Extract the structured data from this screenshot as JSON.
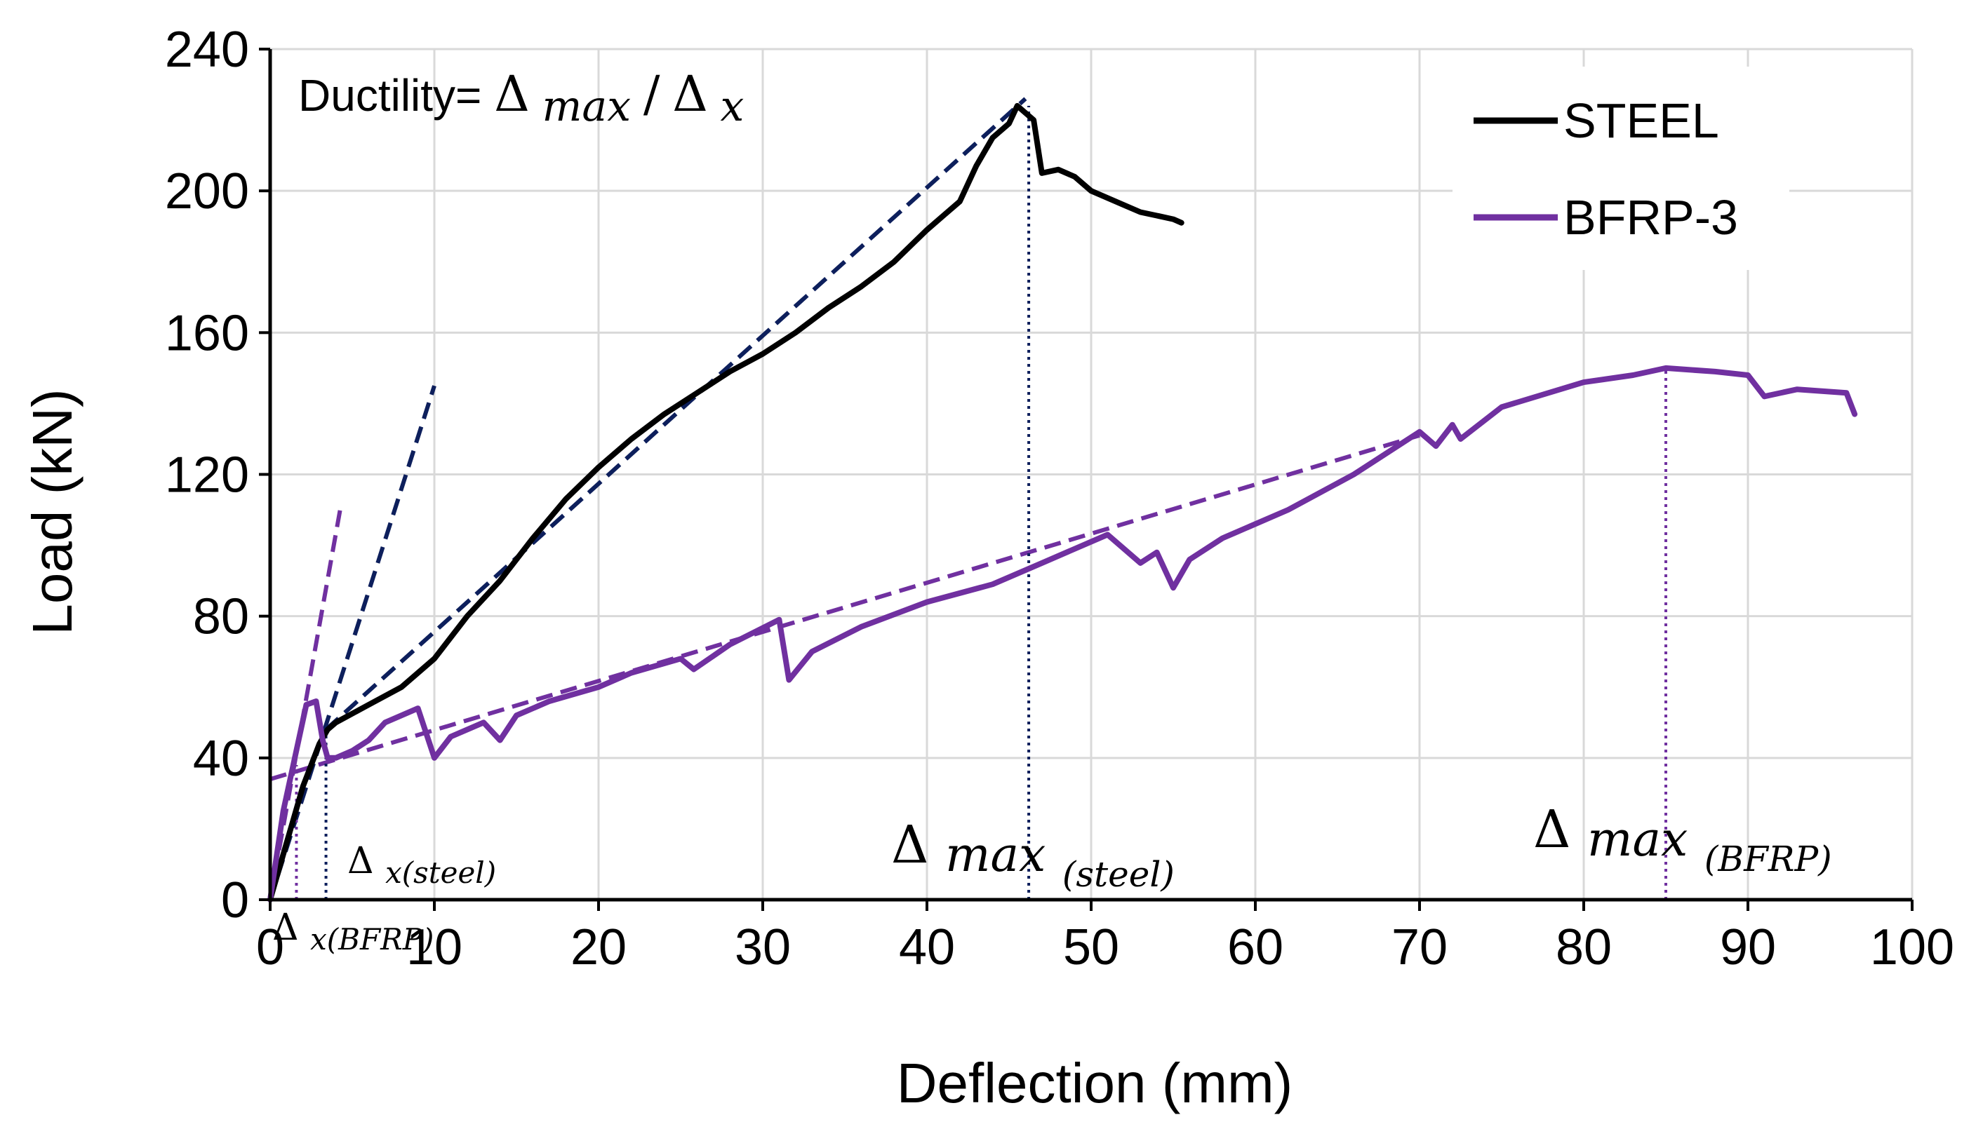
{
  "chart_data": {
    "type": "line",
    "title": "",
    "xlabel": "Deflection (mm)",
    "ylabel": "Load (kN)",
    "xlim": [
      0,
      100
    ],
    "ylim": [
      0,
      240
    ],
    "xticks": [
      "0",
      "10",
      "20",
      "30",
      "40",
      "50",
      "60",
      "70",
      "80",
      "90",
      "100"
    ],
    "yticks": [
      "0",
      "40",
      "80",
      "120",
      "160",
      "200",
      "240"
    ],
    "grid": true,
    "legend_position": "top-right",
    "formula": {
      "prefix": "Ductility= ",
      "numerator_symbol": "Δ",
      "numerator_sub": "max",
      "separator": "/",
      "denominator_symbol": "Δ",
      "denominator_sub": "x"
    },
    "series": [
      {
        "name": "STEEL",
        "color": "#000000",
        "x": [
          0,
          1,
          2,
          3,
          3.5,
          4,
          6,
          8,
          10,
          12,
          14,
          16,
          18,
          20,
          22,
          24,
          26,
          28,
          30,
          32,
          34,
          36,
          38,
          40,
          41,
          42,
          43,
          44,
          45,
          45.5,
          46,
          46.5,
          47,
          48,
          49,
          50,
          51,
          52,
          53,
          54,
          55,
          55.5
        ],
        "y": [
          0,
          16,
          32,
          44,
          48,
          50,
          55,
          60,
          68,
          80,
          90,
          102,
          113,
          122,
          130,
          137,
          143,
          149,
          154,
          160,
          167,
          173,
          180,
          189,
          193,
          197,
          207,
          215,
          219,
          224,
          222,
          220,
          205,
          206,
          204,
          200,
          198,
          196,
          194,
          193,
          192,
          191
        ]
      },
      {
        "name": "BFRP-3",
        "color": "#7030a0",
        "x": [
          0,
          0.8,
          1.5,
          2.2,
          2.8,
          3.2,
          3.5,
          4,
          5,
          6,
          7,
          8,
          9,
          10,
          11,
          13,
          14,
          15,
          17,
          20,
          22,
          25,
          25.8,
          28,
          31,
          31.6,
          33,
          36,
          40,
          44,
          47,
          51,
          53,
          54,
          55,
          56,
          58,
          62,
          66,
          70,
          71,
          72,
          72.5,
          75,
          80,
          83,
          85,
          88,
          90,
          91,
          93,
          96,
          96.5
        ],
        "y": [
          0,
          25,
          40,
          55,
          56,
          45,
          40,
          40,
          42,
          45,
          50,
          52,
          54,
          40,
          46,
          50,
          45,
          52,
          56,
          60,
          64,
          68,
          65,
          72,
          79,
          62,
          70,
          77,
          84,
          89,
          95,
          103,
          95,
          98,
          88,
          96,
          102,
          110,
          120,
          132,
          128,
          134,
          130,
          139,
          146,
          148,
          150,
          149,
          148,
          142,
          144,
          143,
          137
        ]
      }
    ],
    "reference_lines": [
      {
        "name": "steel-initial-stiffness",
        "style": "dashed",
        "color": "#0d1f5c",
        "x": [
          0,
          10
        ],
        "y": [
          0,
          145
        ]
      },
      {
        "name": "steel-secant",
        "style": "dashed",
        "color": "#0d1f5c",
        "x": [
          3.4,
          46
        ],
        "y": [
          48,
          226
        ]
      },
      {
        "name": "bfrp-initial-stiffness",
        "style": "dashed",
        "color": "#7030a0",
        "x": [
          0,
          4.3
        ],
        "y": [
          0,
          111
        ]
      },
      {
        "name": "bfrp-secant",
        "style": "dashed",
        "color": "#7030a0",
        "x": [
          0,
          70
        ],
        "y": [
          34,
          131
        ]
      },
      {
        "name": "delta-x-steel-marker",
        "style": "dotted",
        "color": "#0d1f5c",
        "x": [
          3.4,
          3.4
        ],
        "y": [
          0,
          48
        ]
      },
      {
        "name": "delta-max-steel-marker",
        "style": "dotted",
        "color": "#0d1f5c",
        "x": [
          46.2,
          46.2
        ],
        "y": [
          0,
          224
        ]
      },
      {
        "name": "delta-x-bfrp-marker",
        "style": "dotted",
        "color": "#7030a0",
        "x": [
          1.6,
          1.6
        ],
        "y": [
          0,
          38
        ]
      },
      {
        "name": "delta-max-bfrp-marker",
        "style": "dotted",
        "color": "#7030a0",
        "x": [
          85,
          85
        ],
        "y": [
          0,
          150
        ]
      }
    ],
    "annotations": [
      {
        "name": "delta-x-steel",
        "symbol": "Δ",
        "sub": "x(steel)"
      },
      {
        "name": "delta-x-bfrp",
        "symbol": "Δ",
        "sub": "x(BFRP)"
      },
      {
        "name": "delta-max-steel",
        "symbol": "Δ",
        "main": "max",
        "sub": "(steel)"
      },
      {
        "name": "delta-max-bfrp",
        "symbol": "Δ",
        "main": "max",
        "sub": "(BFRP)"
      }
    ]
  }
}
